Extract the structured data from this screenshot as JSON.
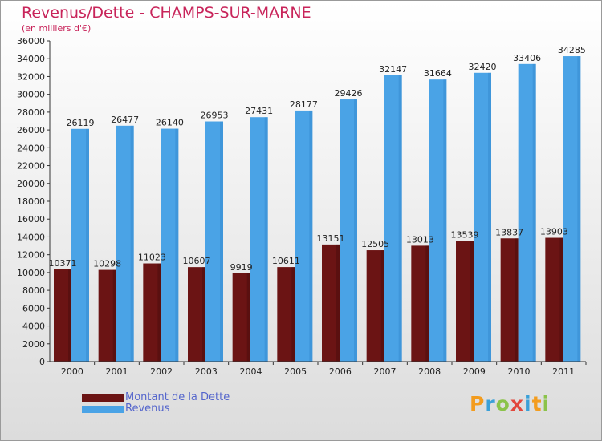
{
  "title": "Revenus/Dette - CHAMPS-SUR-MARNE",
  "subtitle": "(en milliers d'€)",
  "colors": {
    "title": "#c8245a",
    "dette": "#6b1414",
    "revenus": "#4aa3e6",
    "legend_text": "#5566cc"
  },
  "chart_data": {
    "type": "bar",
    "categories": [
      "2000",
      "2001",
      "2002",
      "2003",
      "2004",
      "2005",
      "2006",
      "2007",
      "2008",
      "2009",
      "2010",
      "2011"
    ],
    "series": [
      {
        "name": "Montant de la Dette",
        "values": [
          10371,
          10298,
          11023,
          10607,
          9919,
          10611,
          13151,
          12505,
          13013,
          13539,
          13837,
          13903
        ],
        "labels": [
          "10371",
          "10298",
          "11023",
          "10607",
          "9919",
          "10611",
          "13151",
          "12505",
          "13013",
          "13539",
          "13837",
          "13903"
        ]
      },
      {
        "name": "Revenus",
        "values": [
          26119,
          26477,
          26140,
          26953,
          27431,
          28177,
          29426,
          32147,
          31664,
          32420,
          33406,
          34285
        ],
        "labels": [
          "26119",
          "26477",
          "26140",
          "26953",
          "27431",
          "28177",
          "29426",
          "32147",
          "31664",
          "32420",
          "33406",
          "34285"
        ]
      }
    ],
    "y_ticks": [
      "0",
      "2000",
      "4000",
      "6000",
      "8000",
      "10000",
      "12000",
      "14000",
      "16000",
      "18000",
      "20000",
      "22000",
      "24000",
      "26000",
      "28000",
      "30000",
      "32000",
      "34000",
      "36000"
    ],
    "ylim": [
      0,
      36000
    ],
    "grid": false,
    "legend": "bottom-left"
  },
  "logo_text": "Proxiti"
}
